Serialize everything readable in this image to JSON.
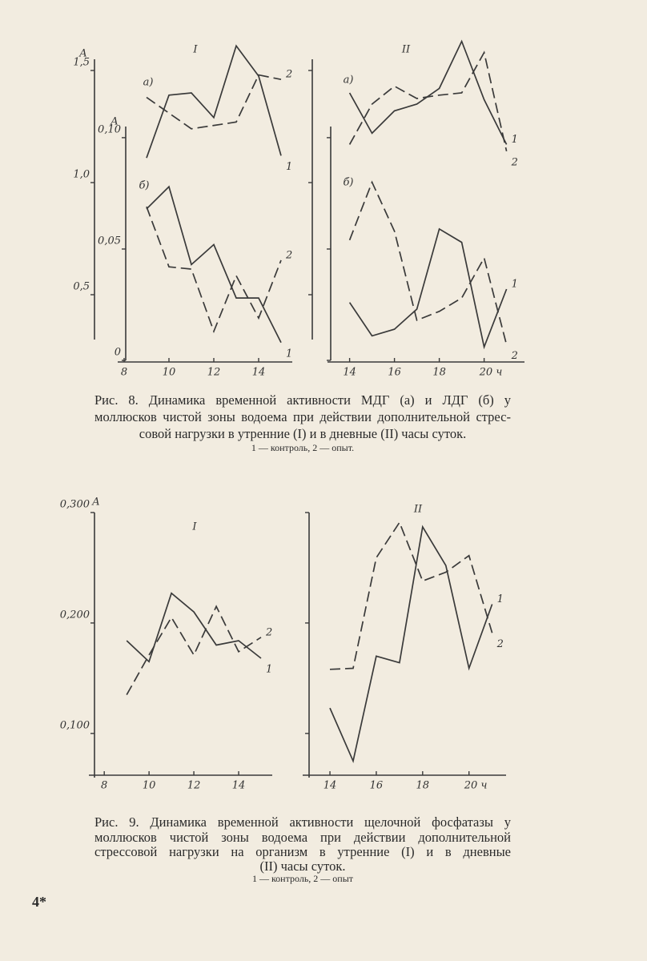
{
  "chart_data": [
    {
      "type": "line",
      "panel": "I",
      "ylabel": "A",
      "y2label": "A",
      "annotations": [
        "а)",
        "б)"
      ],
      "xlim": [
        8,
        15.5
      ],
      "xticks": [
        8,
        10,
        12,
        14
      ],
      "ylim": [
        0.3,
        1.55
      ],
      "yticks": [
        {
          "value": 1.5,
          "label": "1,5"
        },
        {
          "value": 1.0,
          "label": "1,0"
        },
        {
          "value": 0.5,
          "label": "0,5"
        }
      ],
      "y2lim": [
        0,
        0.105
      ],
      "y2ticks": [
        {
          "value": 0.1,
          "label": "0,10"
        },
        {
          "value": 0.05,
          "label": "0,05"
        },
        0
      ],
      "tick_labels": true,
      "series": [
        {
          "name": "1",
          "color": "#3a3a3a",
          "dashed": false,
          "x": [
            9,
            10,
            11,
            12,
            13,
            14,
            15
          ],
          "values": [
            1.11,
            1.39,
            1.4,
            1.29,
            1.61,
            1.475,
            1.12
          ]
        },
        {
          "name": "2",
          "color": "#3a3a3a",
          "dashed": true,
          "x": [
            9,
            11,
            13,
            14,
            15
          ],
          "values": [
            1.38,
            1.24,
            1.27,
            1.48,
            1.46
          ]
        },
        {
          "name": "1",
          "color": "#3a3a3a",
          "dashed": false,
          "axis": "y2",
          "x": [
            9,
            10,
            11,
            12,
            13,
            14,
            15
          ],
          "values": [
            0.068,
            0.078,
            0.043,
            0.052,
            0.028,
            0.028,
            0.008
          ]
        },
        {
          "name": "2",
          "color": "#3a3a3a",
          "dashed": true,
          "axis": "y2",
          "x": [
            9,
            10,
            11,
            12,
            13,
            14,
            15
          ],
          "values": [
            0.069,
            0.042,
            0.041,
            0.013,
            0.038,
            0.019,
            0.045
          ]
        }
      ]
    },
    {
      "type": "line",
      "panel": "II",
      "annotations": [
        "а)",
        "б)"
      ],
      "xlim": [
        13.3,
        21.8
      ],
      "xticks": [
        14,
        16,
        18,
        {
          "value": 20,
          "label": "20 ч"
        }
      ],
      "ylim": [
        0.3,
        1.55
      ],
      "yticks": [
        1.5,
        1.0,
        0.5
      ],
      "y2lim": [
        0,
        0.105
      ],
      "y2ticks": [
        0.1,
        0.05,
        0
      ],
      "tick_labels": false,
      "series": [
        {
          "name": "1",
          "color": "#3a3a3a",
          "dashed": false,
          "x": [
            14,
            15,
            16,
            17,
            18,
            19,
            20,
            21
          ],
          "values": [
            1.4,
            1.22,
            1.32,
            1.35,
            1.42,
            1.63,
            1.37,
            1.17
          ]
        },
        {
          "name": "2",
          "color": "#3a3a3a",
          "dashed": true,
          "x": [
            14,
            15,
            16,
            17,
            18,
            19,
            20,
            21
          ],
          "values": [
            1.17,
            1.35,
            1.43,
            1.375,
            1.39,
            1.4,
            1.58,
            1.14
          ]
        },
        {
          "name": "1",
          "color": "#3a3a3a",
          "dashed": false,
          "axis": "y2",
          "x": [
            14,
            15,
            16,
            17,
            18,
            19,
            20,
            21
          ],
          "values": [
            0.026,
            0.011,
            0.014,
            0.023,
            0.059,
            0.053,
            0.006,
            0.032
          ]
        },
        {
          "name": "2",
          "color": "#3a3a3a",
          "dashed": true,
          "axis": "y2",
          "x": [
            14,
            15,
            16,
            17,
            18,
            19,
            20,
            21
          ],
          "values": [
            0.054,
            0.08,
            0.058,
            0.018,
            0.022,
            0.028,
            0.046,
            0.007
          ]
        }
      ]
    },
    {
      "type": "line",
      "panel": "I",
      "ylabel": "A",
      "xlim": [
        7.6,
        15.5
      ],
      "xticks": [
        8,
        10,
        12,
        14
      ],
      "ylim": [
        0.06,
        0.3
      ],
      "yticks": [
        {
          "value": 0.3,
          "label": "0,300"
        },
        {
          "value": 0.2,
          "label": "0,200"
        },
        {
          "value": 0.1,
          "label": "0,100"
        }
      ],
      "tick_labels": true,
      "series": [
        {
          "name": "1",
          "color": "#3a3a3a",
          "dashed": false,
          "x": [
            9,
            10,
            11,
            12,
            13,
            14,
            15
          ],
          "values": [
            0.184,
            0.165,
            0.227,
            0.21,
            0.18,
            0.184,
            0.168
          ]
        },
        {
          "name": "2",
          "color": "#3a3a3a",
          "dashed": true,
          "x": [
            9,
            10,
            11,
            12,
            13,
            14,
            15
          ],
          "values": [
            0.135,
            0.171,
            0.205,
            0.171,
            0.215,
            0.174,
            0.187
          ]
        }
      ]
    },
    {
      "type": "line",
      "panel": "II",
      "xlim": [
        13.1,
        21.6
      ],
      "xticks": [
        14,
        16,
        18,
        {
          "value": 20,
          "label": "20 ч"
        }
      ],
      "ylim": [
        0.06,
        0.3
      ],
      "yticks": [
        0.3,
        0.2,
        0.1
      ],
      "tick_labels": false,
      "series": [
        {
          "name": "1",
          "color": "#3a3a3a",
          "dashed": false,
          "x": [
            14,
            15,
            16,
            17,
            18,
            19,
            20,
            21
          ],
          "values": [
            0.123,
            0.075,
            0.17,
            0.164,
            0.287,
            0.252,
            0.159,
            0.217
          ]
        },
        {
          "name": "2",
          "color": "#3a3a3a",
          "dashed": true,
          "x": [
            14,
            15,
            16,
            17,
            18,
            19,
            20,
            21
          ],
          "values": [
            0.158,
            0.159,
            0.259,
            0.291,
            0.238,
            0.246,
            0.261,
            0.191
          ]
        }
      ]
    }
  ],
  "figures": [
    {
      "caption": [
        "Рис. 8. Динамика временной активности МДГ (а) и ЛДГ (б) у",
        "моллюсков чистой зоны водоема при действии дополнительной стрес-",
        "совой нагрузки в утренние (I) и в дневные (II) часы суток."
      ],
      "legend": "1 — контроль, 2 — опыт."
    },
    {
      "caption": [
        "Рис. 9. Динамика временной активности щелочной фосфатазы у",
        "моллюсков чистой зоны водоема при действии дополнительной",
        "стрессовой нагрузки на организм в утренние (I) и в дневные",
        "(II) часы суток."
      ],
      "legend": "1 — контроль, 2 — опыт"
    }
  ],
  "page_number": "4*"
}
